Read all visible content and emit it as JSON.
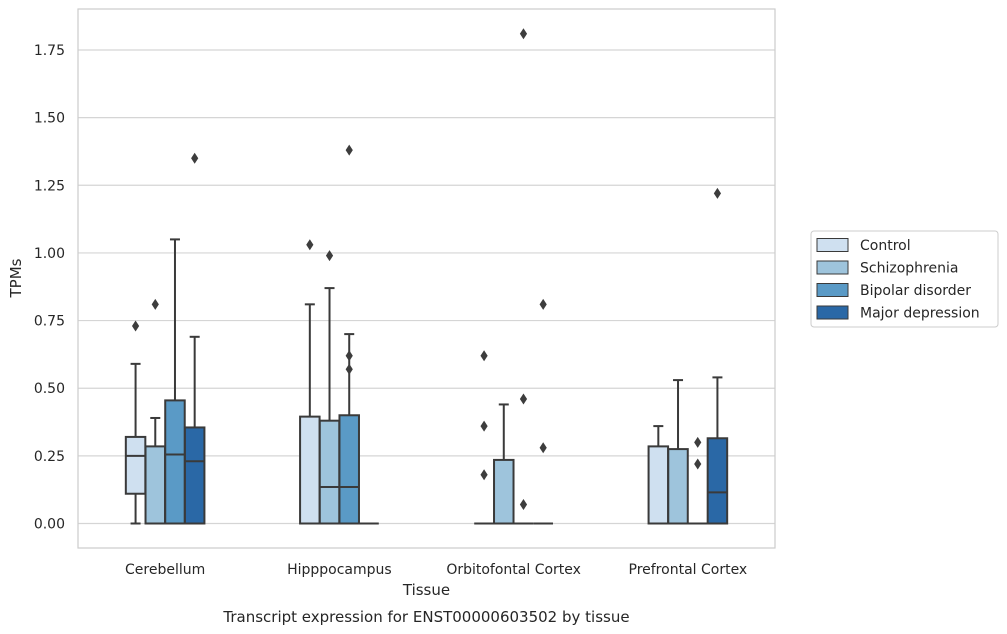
{
  "chart_data": {
    "type": "boxplot",
    "title": "",
    "caption": "Transcript expression for ENST00000603502 by tissue",
    "xlabel": "Tissue",
    "ylabel": "TPMs",
    "ylim": [
      -0.09,
      1.9
    ],
    "yticks": [
      "0.00",
      "0.25",
      "0.50",
      "0.75",
      "1.00",
      "1.25",
      "1.50",
      "1.75"
    ],
    "ytick_values": [
      0,
      0.25,
      0.5,
      0.75,
      1.0,
      1.25,
      1.5,
      1.75
    ],
    "grid": "horizontal",
    "legend_position": "right",
    "categories": [
      "Cerebellum",
      "Hipppocampus",
      "Orbitofontal Cortex",
      "Prefrontal Cortex"
    ],
    "series": [
      {
        "name": "Control",
        "color": "#cfe0f0",
        "boxes": [
          {
            "category": "Cerebellum",
            "whislo": 0.0,
            "q1": 0.11,
            "median": 0.25,
            "q3": 0.32,
            "whishi": 0.59,
            "fliers": [
              0.73
            ]
          },
          {
            "category": "Hipppocampus",
            "whislo": 0.0,
            "q1": 0.0,
            "median": 0.0,
            "q3": 0.395,
            "whishi": 0.81,
            "fliers": [
              1.03
            ]
          },
          {
            "category": "Orbitofontal Cortex",
            "whislo": 0.0,
            "q1": 0.0,
            "median": 0.0,
            "q3": 0.0,
            "whishi": 0.0,
            "fliers": [
              0.18,
              0.36,
              0.62
            ]
          },
          {
            "category": "Prefrontal Cortex",
            "whislo": 0.0,
            "q1": 0.0,
            "median": 0.0,
            "q3": 0.285,
            "whishi": 0.36,
            "fliers": []
          }
        ]
      },
      {
        "name": "Schizophrenia",
        "color": "#9ec4dc",
        "boxes": [
          {
            "category": "Cerebellum",
            "whislo": 0.0,
            "q1": 0.0,
            "median": 0.0,
            "q3": 0.285,
            "whishi": 0.39,
            "fliers": [
              0.81
            ]
          },
          {
            "category": "Hipppocampus",
            "whislo": 0.0,
            "q1": 0.0,
            "median": 0.135,
            "q3": 0.38,
            "whishi": 0.87,
            "fliers": [
              0.99
            ]
          },
          {
            "category": "Orbitofontal Cortex",
            "whislo": 0.0,
            "q1": 0.0,
            "median": 0.0,
            "q3": 0.235,
            "whishi": 0.44,
            "fliers": []
          },
          {
            "category": "Prefrontal Cortex",
            "whislo": 0.0,
            "q1": 0.0,
            "median": 0.0,
            "q3": 0.275,
            "whishi": 0.53,
            "fliers": []
          }
        ]
      },
      {
        "name": "Bipolar disorder",
        "color": "#5a9ac6",
        "boxes": [
          {
            "category": "Cerebellum",
            "whislo": 0.0,
            "q1": 0.0,
            "median": 0.255,
            "q3": 0.455,
            "whishi": 1.05,
            "fliers": []
          },
          {
            "category": "Hipppocampus",
            "whislo": 0.0,
            "q1": 0.0,
            "median": 0.135,
            "q3": 0.4,
            "whishi": 0.7,
            "fliers": [
              0.57,
              0.62,
              1.38
            ]
          },
          {
            "category": "Orbitofontal Cortex",
            "whislo": 0.0,
            "q1": 0.0,
            "median": 0.0,
            "q3": 0.0,
            "whishi": 0.0,
            "fliers": [
              0.07,
              0.46,
              1.81
            ]
          },
          {
            "category": "Prefrontal Cortex",
            "whislo": 0.0,
            "q1": 0.0,
            "median": 0.0,
            "q3": 0.0,
            "whishi": 0.0,
            "fliers": [
              0.22,
              0.3
            ]
          }
        ]
      },
      {
        "name": "Major depression",
        "color": "#2a68a6",
        "boxes": [
          {
            "category": "Cerebellum",
            "whislo": 0.0,
            "q1": 0.0,
            "median": 0.23,
            "q3": 0.355,
            "whishi": 0.69,
            "fliers": [
              1.35
            ]
          },
          {
            "category": "Hipppocampus",
            "whislo": 0.0,
            "q1": 0.0,
            "median": 0.0,
            "q3": 0.0,
            "whishi": 0.0,
            "fliers": []
          },
          {
            "category": "Orbitofontal Cortex",
            "whislo": 0.0,
            "q1": 0.0,
            "median": 0.0,
            "q3": 0.0,
            "whishi": 0.0,
            "fliers": [
              0.28,
              0.81
            ]
          },
          {
            "category": "Prefrontal Cortex",
            "whislo": 0.0,
            "q1": 0.0,
            "median": 0.115,
            "q3": 0.315,
            "whishi": 0.54,
            "fliers": [
              1.22
            ]
          }
        ]
      }
    ]
  }
}
